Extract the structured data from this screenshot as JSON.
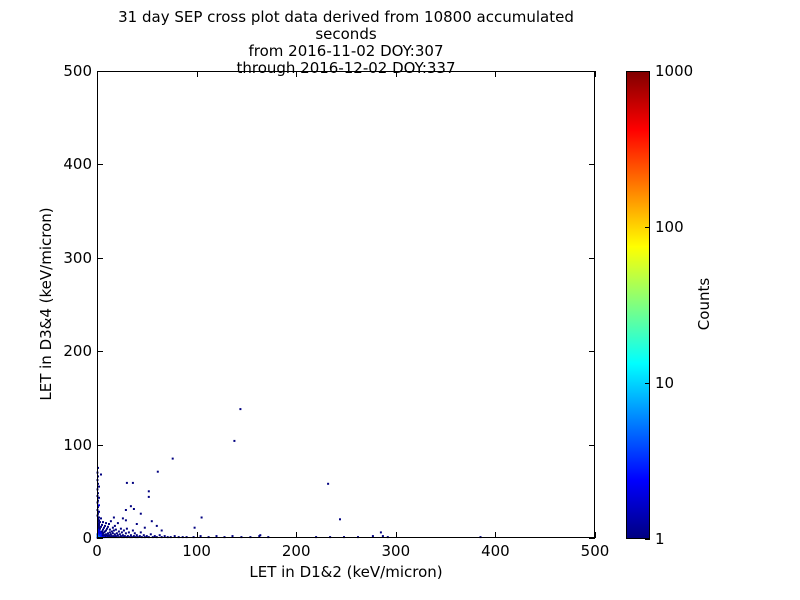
{
  "chart_data": {
    "type": "scatter",
    "title_lines": [
      "31 day SEP cross plot data derived from 10800 accumulated seconds",
      "from 2016-11-02 DOY:307",
      "through 2016-12-02 DOY:337"
    ],
    "xlabel": "LET in D1&2 (keV/micron)",
    "ylabel": "LET in D3&4 (keV/micron)",
    "xlim": [
      0,
      500
    ],
    "ylim": [
      0,
      500
    ],
    "x_ticks": [
      0,
      100,
      200,
      300,
      400,
      500
    ],
    "y_ticks": [
      0,
      100,
      200,
      300,
      400,
      500
    ],
    "grid": false,
    "legend": "none",
    "marker": "square-2px",
    "colorbar": {
      "label": "Counts",
      "scale": "log",
      "range": [
        1,
        1000
      ],
      "ticks": [
        1,
        10,
        100,
        1000
      ],
      "colormap": "jet",
      "stops": [
        {
          "pos": 0.0,
          "color": "#000080"
        },
        {
          "pos": 0.125,
          "color": "#0000ff"
        },
        {
          "pos": 0.375,
          "color": "#00ffff"
        },
        {
          "pos": 0.625,
          "color": "#ffff00"
        },
        {
          "pos": 0.875,
          "color": "#ff0000"
        },
        {
          "pos": 1.0,
          "color": "#800000"
        }
      ]
    },
    "points_format": "[let_d12, let_d34, counts]",
    "points": [
      [
        0.5,
        0.5,
        2
      ],
      [
        1,
        1,
        30
      ],
      [
        1.5,
        0.5,
        8
      ],
      [
        2,
        1,
        12
      ],
      [
        0.5,
        2,
        6
      ],
      [
        1,
        3,
        8
      ],
      [
        2,
        2,
        5
      ],
      [
        3,
        1,
        6
      ],
      [
        3,
        3,
        3
      ],
      [
        0.5,
        4,
        4
      ],
      [
        4,
        0.5,
        4
      ],
      [
        2,
        4,
        3
      ],
      [
        4,
        2,
        3
      ],
      [
        5,
        1,
        3
      ],
      [
        1,
        5,
        3
      ],
      [
        5,
        3,
        2
      ],
      [
        3,
        5,
        2
      ],
      [
        6,
        1,
        2
      ],
      [
        1,
        6,
        3
      ],
      [
        6,
        3,
        1
      ],
      [
        2,
        6,
        2
      ],
      [
        7,
        1,
        2
      ],
      [
        4,
        5,
        2
      ],
      [
        5,
        5,
        2
      ],
      [
        7,
        3,
        1
      ],
      [
        3,
        7,
        2
      ],
      [
        8,
        1,
        2
      ],
      [
        1,
        8,
        2
      ],
      [
        8,
        3,
        1
      ],
      [
        6,
        5,
        1
      ],
      [
        2,
        9,
        2
      ],
      [
        9,
        2,
        1
      ],
      [
        5,
        7,
        1
      ],
      [
        9,
        4,
        1
      ],
      [
        7,
        6,
        1
      ],
      [
        10,
        1,
        2
      ],
      [
        1,
        10,
        2
      ],
      [
        10,
        3,
        1
      ],
      [
        3,
        10,
        1
      ],
      [
        8,
        7,
        1
      ],
      [
        11,
        2,
        1
      ],
      [
        2,
        11,
        1
      ],
      [
        11,
        5,
        1
      ],
      [
        6,
        9,
        1
      ],
      [
        12,
        1,
        1
      ],
      [
        1,
        12,
        1
      ],
      [
        12,
        3,
        1
      ],
      [
        4,
        12,
        1
      ],
      [
        9,
        8,
        1
      ],
      [
        13,
        2,
        1
      ],
      [
        2,
        13,
        1
      ],
      [
        13,
        6,
        1
      ],
      [
        7,
        11,
        1
      ],
      [
        14,
        1,
        1
      ],
      [
        1,
        14,
        1
      ],
      [
        14,
        4,
        1
      ],
      [
        5,
        14,
        1
      ],
      [
        10,
        10,
        1
      ],
      [
        15,
        2,
        1
      ],
      [
        2,
        15,
        1
      ],
      [
        15,
        7,
        1
      ],
      [
        8,
        13,
        1
      ],
      [
        16,
        1,
        1
      ],
      [
        1,
        16,
        1
      ],
      [
        16,
        5,
        1
      ],
      [
        11,
        12,
        1
      ],
      [
        17,
        2,
        1
      ],
      [
        3,
        17,
        1
      ],
      [
        17,
        8,
        1
      ],
      [
        18,
        1,
        1
      ],
      [
        1,
        18,
        1
      ],
      [
        18,
        4,
        1
      ],
      [
        6,
        17,
        1
      ],
      [
        19,
        2,
        1
      ],
      [
        2,
        19,
        1
      ],
      [
        19,
        9,
        1
      ],
      [
        20,
        1,
        1
      ],
      [
        1,
        20,
        1
      ],
      [
        20,
        5,
        1
      ],
      [
        12,
        15,
        1
      ],
      [
        21,
        3,
        1
      ],
      [
        4,
        21,
        1
      ],
      [
        22,
        1,
        1
      ],
      [
        2,
        22,
        1
      ],
      [
        22,
        7,
        1
      ],
      [
        14,
        18,
        1
      ],
      [
        9,
        16,
        1
      ],
      [
        13,
        9,
        1
      ],
      [
        16,
        11,
        1
      ],
      [
        18,
        13,
        1
      ],
      [
        21,
        16,
        1
      ],
      [
        23,
        4,
        1
      ],
      [
        24,
        2,
        1
      ],
      [
        24,
        10,
        1
      ],
      [
        25,
        1,
        1
      ],
      [
        25,
        6,
        1
      ],
      [
        26,
        3,
        1
      ],
      [
        27,
        1,
        1
      ],
      [
        27,
        8,
        1
      ],
      [
        28,
        2,
        1
      ],
      [
        29,
        5,
        1
      ],
      [
        30,
        1,
        1
      ],
      [
        30,
        10,
        1
      ],
      [
        31,
        2,
        1
      ],
      [
        32,
        6,
        1
      ],
      [
        33,
        1,
        1
      ],
      [
        34,
        3,
        1
      ],
      [
        35,
        1,
        1
      ],
      [
        36,
        8,
        1
      ],
      [
        37,
        2,
        1
      ],
      [
        38,
        5,
        1
      ],
      [
        39,
        1,
        1
      ],
      [
        40,
        3,
        1
      ],
      [
        41,
        1,
        1
      ],
      [
        43,
        2,
        1
      ],
      [
        44,
        6,
        1
      ],
      [
        45,
        1,
        1
      ],
      [
        47,
        3,
        1
      ],
      [
        48,
        1,
        1
      ],
      [
        50,
        2,
        1
      ],
      [
        52,
        1,
        1
      ],
      [
        54,
        4,
        1
      ],
      [
        56,
        1,
        1
      ],
      [
        58,
        2,
        1
      ],
      [
        60,
        1,
        1
      ],
      [
        63,
        3,
        1
      ],
      [
        65,
        1,
        1
      ],
      [
        68,
        2,
        1
      ],
      [
        71,
        1,
        1
      ],
      [
        74,
        1,
        1
      ],
      [
        78,
        2,
        1
      ],
      [
        82,
        1,
        1
      ],
      [
        86,
        1,
        1
      ],
      [
        90,
        1,
        1
      ],
      [
        0.5,
        24,
        1
      ],
      [
        1,
        26,
        1
      ],
      [
        2,
        28,
        1
      ],
      [
        0.5,
        30,
        1
      ],
      [
        1,
        33,
        1
      ],
      [
        2,
        35,
        2
      ],
      [
        0.5,
        38,
        1
      ],
      [
        1,
        40,
        1
      ],
      [
        2,
        43,
        1
      ],
      [
        0.5,
        45,
        1
      ],
      [
        1,
        48,
        1
      ],
      [
        0.5,
        52,
        1
      ],
      [
        2,
        55,
        1
      ],
      [
        1,
        58,
        1
      ],
      [
        0.5,
        62,
        1
      ],
      [
        1,
        66,
        1
      ],
      [
        0.5,
        70,
        1
      ],
      [
        4,
        68,
        1
      ],
      [
        1,
        75,
        1
      ],
      [
        17,
        22,
        1
      ],
      [
        26,
        21,
        1
      ],
      [
        29,
        19,
        1
      ],
      [
        29,
        30,
        1
      ],
      [
        34,
        34,
        1
      ],
      [
        37,
        31,
        1
      ],
      [
        30,
        59,
        1
      ],
      [
        36,
        59,
        1
      ],
      [
        52,
        50,
        1
      ],
      [
        52,
        44,
        1
      ],
      [
        44,
        26,
        1
      ],
      [
        40,
        15,
        1
      ],
      [
        48,
        11,
        1
      ],
      [
        55,
        18,
        1
      ],
      [
        61,
        71,
        1
      ],
      [
        60,
        13,
        1
      ],
      [
        65,
        8,
        1
      ],
      [
        76,
        85,
        1
      ],
      [
        98,
        11,
        1
      ],
      [
        105,
        22,
        1
      ],
      [
        138,
        104,
        1
      ],
      [
        144,
        138,
        1
      ],
      [
        164,
        3,
        1
      ],
      [
        232,
        58,
        1
      ],
      [
        244,
        20,
        1
      ],
      [
        97,
        1,
        1
      ],
      [
        104,
        2,
        1
      ],
      [
        112,
        1,
        1
      ],
      [
        120,
        2,
        1
      ],
      [
        128,
        1,
        1
      ],
      [
        136,
        2,
        1
      ],
      [
        145,
        1,
        1
      ],
      [
        154,
        1,
        1
      ],
      [
        163,
        2,
        1
      ],
      [
        172,
        1,
        1
      ],
      [
        220,
        1,
        1
      ],
      [
        234,
        1,
        1
      ],
      [
        248,
        1,
        1
      ],
      [
        262,
        1,
        1
      ],
      [
        277,
        2,
        1
      ],
      [
        285,
        6,
        1
      ],
      [
        287,
        2,
        1
      ],
      [
        292,
        1,
        1
      ],
      [
        385,
        1,
        1
      ]
    ]
  }
}
